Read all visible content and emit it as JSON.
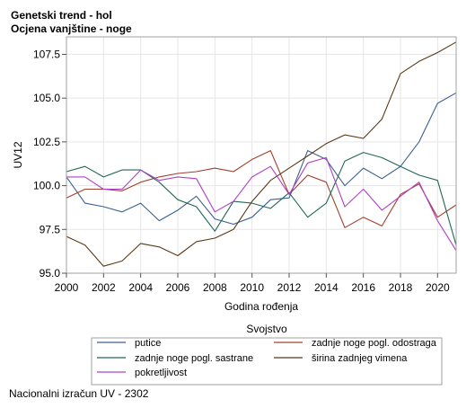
{
  "header": {
    "title": "Genetski trend - hol",
    "subtitle": "Ocjena vanjštine - noge"
  },
  "footer": {
    "note": "Nacionalni izračun UV - 2302"
  },
  "chart_data": {
    "type": "line",
    "xlabel": "Godina rođenja",
    "ylabel": "UV12",
    "xlim": [
      2000,
      2021
    ],
    "ylim": [
      95.0,
      108.5
    ],
    "x_ticks": [
      2000,
      2002,
      2004,
      2006,
      2008,
      2010,
      2012,
      2014,
      2016,
      2018,
      2020
    ],
    "y_ticks": [
      95.0,
      97.5,
      100.0,
      102.5,
      105.0,
      107.5
    ],
    "y_tick_labels": [
      "95.0",
      "97.5",
      "100.0",
      "102.5",
      "105.0",
      "107.5"
    ],
    "grid": true,
    "legend_title": "Svojstvo",
    "legend_position": "bottom",
    "x": [
      2000,
      2001,
      2002,
      2003,
      2004,
      2005,
      2006,
      2007,
      2008,
      2009,
      2010,
      2011,
      2012,
      2013,
      2014,
      2015,
      2016,
      2017,
      2018,
      2019,
      2020,
      2021
    ],
    "series": [
      {
        "name": "putice",
        "color": "#3a6090",
        "values": [
          100.5,
          99.0,
          98.8,
          98.5,
          99.0,
          98.0,
          98.6,
          99.4,
          98.1,
          97.8,
          98.2,
          99.2,
          99.3,
          102.0,
          101.5,
          100.0,
          101.0,
          100.4,
          101.1,
          102.5,
          104.7,
          105.3
        ]
      },
      {
        "name": "zadnje noge pogl. odostraga",
        "color": "#a0402a",
        "values": [
          99.3,
          99.8,
          99.8,
          99.7,
          100.2,
          100.5,
          100.7,
          100.8,
          101.0,
          100.8,
          101.5,
          102.0,
          99.5,
          100.6,
          100.2,
          97.6,
          98.2,
          97.7,
          99.5,
          100.1,
          98.2,
          98.9
        ]
      },
      {
        "name": "zadnje noge pogl. sastrane",
        "color": "#206858",
        "values": [
          100.8,
          101.1,
          100.5,
          100.9,
          100.9,
          100.2,
          99.2,
          98.8,
          97.4,
          99.1,
          99.0,
          98.7,
          99.6,
          98.2,
          99.0,
          101.4,
          101.9,
          101.6,
          101.1,
          100.6,
          100.3,
          96.6
        ]
      },
      {
        "name": "širina zadnjeg vimena",
        "color": "#5a3a18",
        "values": [
          97.1,
          96.6,
          95.4,
          95.7,
          96.7,
          96.5,
          96.0,
          96.8,
          97.0,
          97.5,
          99.1,
          100.3,
          101.0,
          101.7,
          102.4,
          102.9,
          102.7,
          103.8,
          106.4,
          107.1,
          107.6,
          108.2
        ]
      },
      {
        "name": "pokretljivost",
        "color": "#b040c8",
        "values": [
          100.5,
          100.5,
          99.8,
          99.8,
          100.9,
          100.3,
          100.5,
          100.4,
          98.5,
          99.1,
          100.5,
          101.1,
          99.5,
          101.3,
          101.6,
          98.8,
          99.8,
          98.6,
          99.4,
          100.2,
          98.0,
          96.3
        ]
      }
    ]
  }
}
